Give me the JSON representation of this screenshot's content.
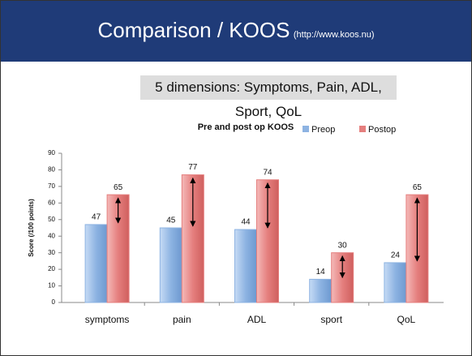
{
  "header": {
    "title": "Comparison / KOOS",
    "url": "(http://www.koos.nu)"
  },
  "subtitle": "5 dimensions: Symptoms, Pain, ADL, Sport, QoL",
  "chart_data": {
    "type": "bar",
    "title": "Pre and post op KOOS",
    "y_label": "Score (/100 points)",
    "categories": [
      "symptoms",
      "pain",
      "ADL",
      "sport",
      "QoL"
    ],
    "series": [
      {
        "name": "Preop",
        "color": "#8db3e2",
        "values": [
          47,
          45,
          44,
          14,
          24
        ]
      },
      {
        "name": "Postop",
        "color": "#e57f7e",
        "values": [
          65,
          77,
          74,
          30,
          65
        ]
      }
    ],
    "ylim": [
      0,
      90
    ],
    "yticks": [
      0,
      10,
      20,
      30,
      40,
      50,
      60,
      70,
      80,
      90
    ],
    "legend": "top-right"
  }
}
